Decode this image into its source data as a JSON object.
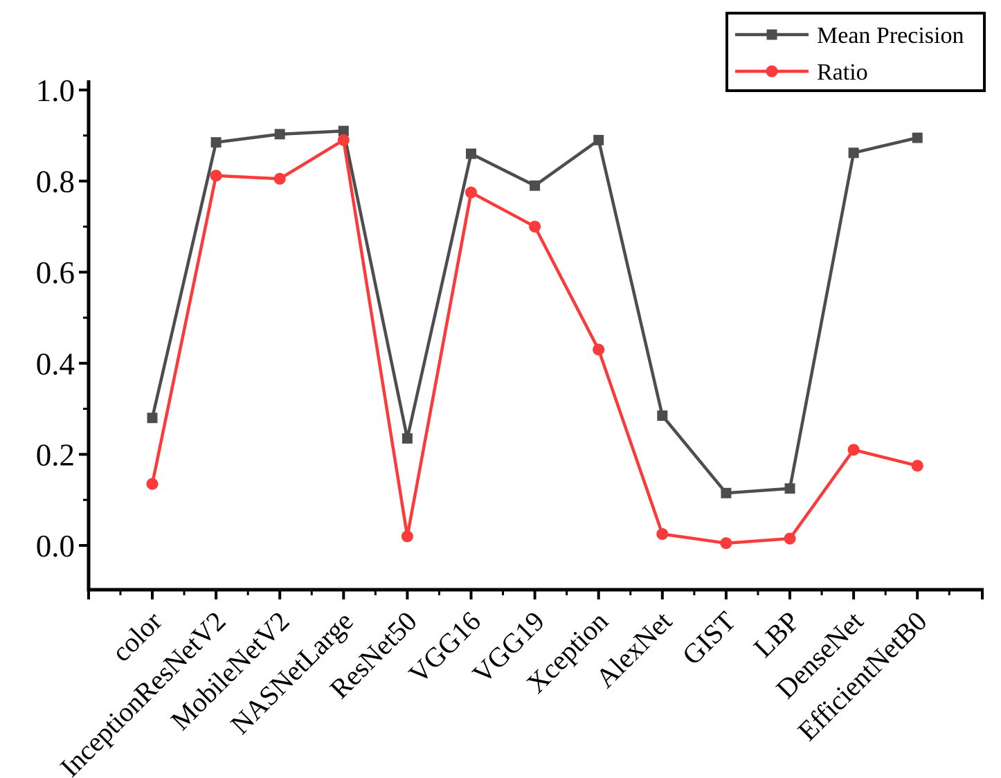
{
  "chart_data": {
    "type": "line",
    "title": "",
    "xlabel": "",
    "ylabel": "",
    "categories": [
      "color",
      "InceptionResNetV2",
      "MobileNetV2",
      "NASNetLarge",
      "ResNet50",
      "VGG16",
      "VGG19",
      "Xception",
      "AlexNet",
      "GIST",
      "LBP",
      "DenseNet",
      "EfficientNetB0"
    ],
    "series": [
      {
        "name": "Mean Precision",
        "color": "#4d4d4d",
        "marker": "square",
        "values": [
          0.28,
          0.885,
          0.903,
          0.91,
          0.235,
          0.86,
          0.79,
          0.89,
          0.285,
          0.115,
          0.125,
          0.862,
          0.895
        ]
      },
      {
        "name": "Ratio",
        "color": "#f93b3b",
        "marker": "circle",
        "values": [
          0.135,
          0.812,
          0.805,
          0.89,
          0.02,
          0.775,
          0.7,
          0.43,
          0.025,
          0.005,
          0.015,
          0.21,
          0.175
        ]
      }
    ],
    "ylim": [
      -0.1,
      1.02
    ],
    "yticks": [
      0.0,
      0.2,
      0.4,
      0.6,
      0.8,
      1.0
    ],
    "ytick_labels": [
      "0.0",
      "0.2",
      "0.4",
      "0.6",
      "0.8",
      "1.0"
    ],
    "minor_yticks": [
      0.1,
      0.3,
      0.5,
      0.7,
      0.9
    ],
    "grid": false,
    "legend": {
      "position": "top-right"
    },
    "axis_color": "#000000",
    "background": "#ffffff"
  }
}
